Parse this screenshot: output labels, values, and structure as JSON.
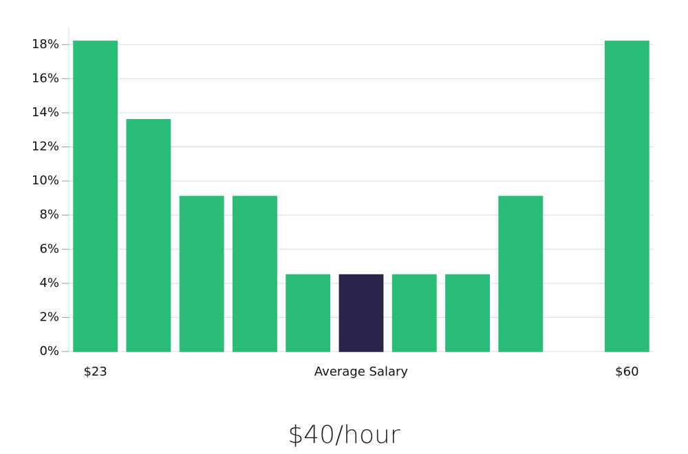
{
  "chart_data": {
    "type": "bar",
    "annotation": "$40/hour",
    "categories": [
      "$23",
      null,
      null,
      null,
      null,
      "Average Salary",
      null,
      null,
      null,
      null,
      "$60"
    ],
    "values": [
      18.2,
      13.6,
      9.1,
      9.1,
      4.5,
      4.5,
      4.5,
      4.5,
      9.1,
      0,
      18.2
    ],
    "colors": [
      "#2abd78",
      "#2abd78",
      "#2abd78",
      "#2abd78",
      "#2abd78",
      "#29254a",
      "#2abd78",
      "#2abd78",
      "#2abd78",
      "#2abd78",
      "#2abd78"
    ],
    "ylim": [
      0,
      19
    ],
    "yticks": [
      {
        "value": 0,
        "label": "0%"
      },
      {
        "value": 2,
        "label": "2%"
      },
      {
        "value": 4,
        "label": "4%"
      },
      {
        "value": 6,
        "label": "6%"
      },
      {
        "value": 8,
        "label": "8%"
      },
      {
        "value": 10,
        "label": "10%"
      },
      {
        "value": 12,
        "label": "12%"
      },
      {
        "value": 14,
        "label": "14%"
      },
      {
        "value": 16,
        "label": "16%"
      },
      {
        "value": 18,
        "label": "18%"
      }
    ],
    "grid": true
  }
}
